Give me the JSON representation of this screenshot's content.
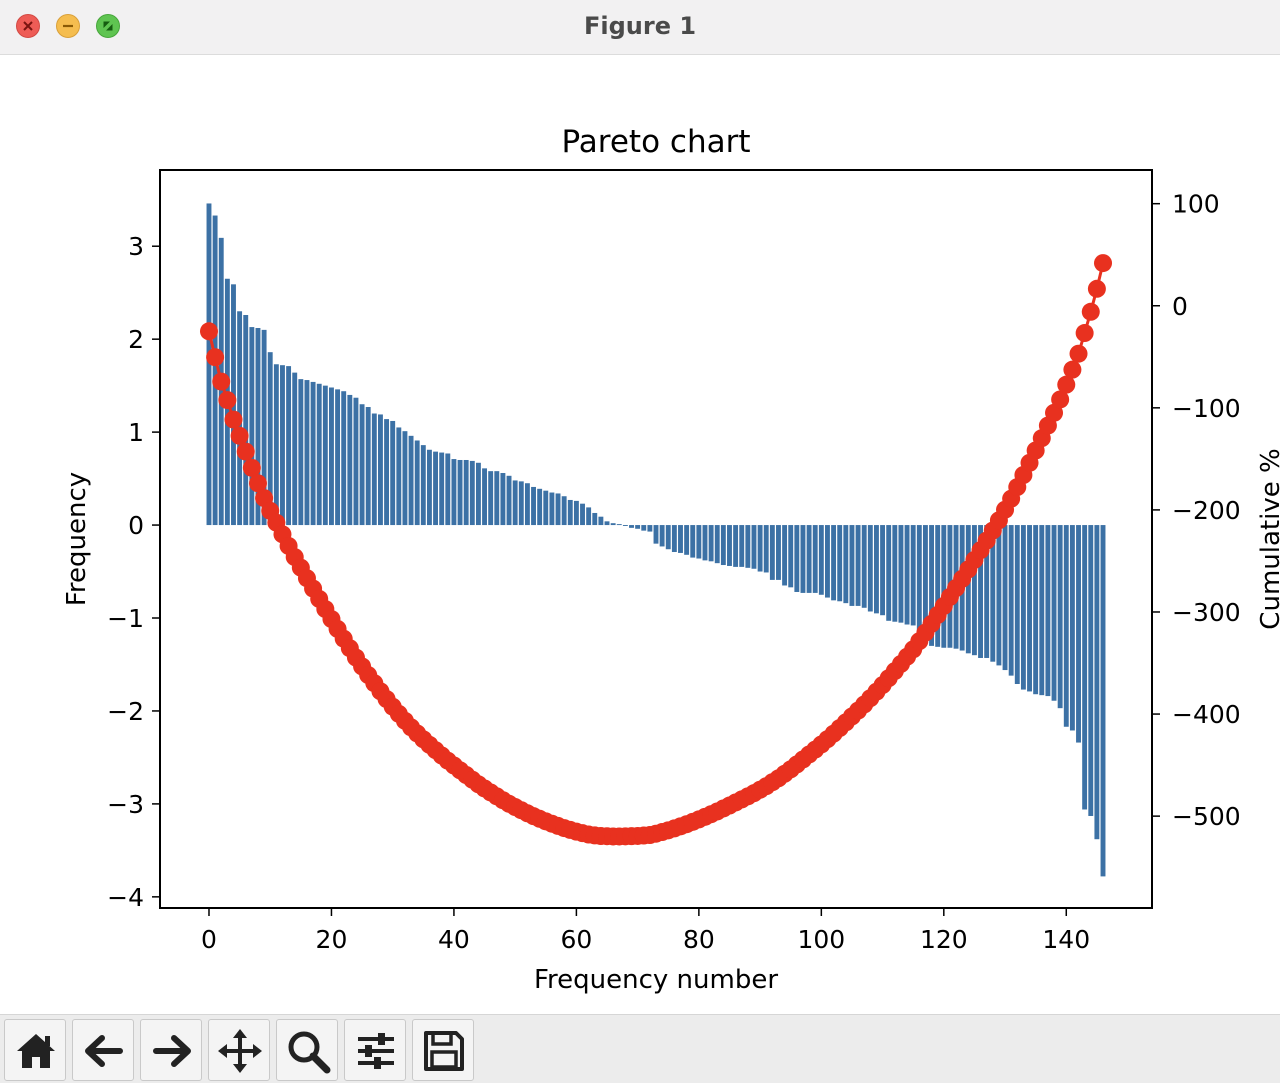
{
  "window": {
    "title": "Figure 1"
  },
  "toolbar": {
    "buttons": [
      {
        "icon": "home-icon"
      },
      {
        "icon": "back-arrow-icon"
      },
      {
        "icon": "forward-arrow-icon"
      },
      {
        "icon": "pan-icon"
      },
      {
        "icon": "zoom-icon"
      },
      {
        "icon": "configure-subplots-icon"
      },
      {
        "icon": "save-icon"
      }
    ]
  },
  "colors": {
    "bars": "#3c71a5",
    "line": "#e8311f"
  },
  "chart_data": {
    "type": "bar",
    "title": "Pareto chart",
    "xlabel": "Frequency number",
    "ylabel": "Frequency",
    "y2label": "Cumulative %",
    "xlim": [
      -8,
      154
    ],
    "ylim": [
      -4.12,
      3.82
    ],
    "y2lim": [
      -590,
      133
    ],
    "xticks": [
      0,
      20,
      40,
      60,
      80,
      100,
      120,
      140
    ],
    "yticks": [
      3,
      2,
      1,
      0,
      -1,
      -2,
      -3,
      -4
    ],
    "y2ticks": [
      100,
      0,
      -100,
      -200,
      -300,
      -400,
      -500
    ],
    "x": [
      0,
      1,
      2,
      3,
      4,
      5,
      6,
      7,
      8,
      9,
      10,
      11,
      12,
      13,
      14,
      15,
      16,
      17,
      18,
      19,
      20,
      21,
      22,
      23,
      24,
      25,
      26,
      27,
      28,
      29,
      30,
      31,
      32,
      33,
      34,
      35,
      36,
      37,
      38,
      39,
      40,
      41,
      42,
      43,
      44,
      45,
      46,
      47,
      48,
      49,
      50,
      51,
      52,
      53,
      54,
      55,
      56,
      57,
      58,
      59,
      60,
      61,
      62,
      63,
      64,
      65,
      66,
      67,
      68,
      69,
      70,
      71,
      72,
      73,
      74,
      75,
      76,
      77,
      78,
      79,
      80,
      81,
      82,
      83,
      84,
      85,
      86,
      87,
      88,
      89,
      90,
      91,
      92,
      93,
      94,
      95,
      96,
      97,
      98,
      99,
      100,
      101,
      102,
      103,
      104,
      105,
      106,
      107,
      108,
      109,
      110,
      111,
      112,
      113,
      114,
      115,
      116,
      117,
      118,
      119,
      120,
      121,
      122,
      123,
      124,
      125,
      126,
      127,
      128,
      129,
      130,
      131,
      132,
      133,
      134,
      135,
      136,
      137,
      138,
      139,
      140,
      141,
      142,
      143,
      144,
      145,
      146
    ],
    "series": [
      {
        "values": [
          3.46,
          3.33,
          3.09,
          2.65,
          2.59,
          2.3,
          2.26,
          2.13,
          2.12,
          2.1,
          1.86,
          1.73,
          1.72,
          1.71,
          1.64,
          1.57,
          1.56,
          1.54,
          1.52,
          1.5,
          1.48,
          1.46,
          1.44,
          1.4,
          1.37,
          1.3,
          1.27,
          1.2,
          1.19,
          1.14,
          1.12,
          1.05,
          1.01,
          0.96,
          0.91,
          0.86,
          0.81,
          0.79,
          0.78,
          0.77,
          0.71,
          0.7,
          0.7,
          0.69,
          0.67,
          0.61,
          0.58,
          0.58,
          0.56,
          0.53,
          0.48,
          0.47,
          0.45,
          0.41,
          0.39,
          0.37,
          0.35,
          0.34,
          0.31,
          0.27,
          0.26,
          0.23,
          0.19,
          0.13,
          0.09,
          0.04,
          0.02,
          0.01,
          -0.01,
          -0.03,
          -0.04,
          -0.06,
          -0.07,
          -0.2,
          -0.23,
          -0.26,
          -0.29,
          -0.3,
          -0.32,
          -0.35,
          -0.36,
          -0.38,
          -0.39,
          -0.41,
          -0.43,
          -0.44,
          -0.45,
          -0.45,
          -0.46,
          -0.47,
          -0.5,
          -0.51,
          -0.59,
          -0.59,
          -0.65,
          -0.67,
          -0.72,
          -0.73,
          -0.73,
          -0.73,
          -0.75,
          -0.78,
          -0.81,
          -0.82,
          -0.84,
          -0.87,
          -0.87,
          -0.89,
          -0.93,
          -0.95,
          -0.97,
          -1.03,
          -1.04,
          -1.05,
          -1.07,
          -1.08,
          -1.2,
          -1.26,
          -1.3,
          -1.31,
          -1.32,
          -1.32,
          -1.33,
          -1.35,
          -1.38,
          -1.4,
          -1.43,
          -1.43,
          -1.47,
          -1.51,
          -1.56,
          -1.62,
          -1.71,
          -1.77,
          -1.79,
          -1.82,
          -1.83,
          -1.84,
          -1.89,
          -1.97,
          -2.17,
          -2.21,
          -2.34,
          -3.06,
          -3.13,
          -3.38,
          -3.78
        ]
      },
      {
        "values": [
          -25,
          -50.4,
          -74.3,
          -92.4,
          -111.5,
          -127.4,
          -142.9,
          -158.8,
          -173.9,
          -188.4,
          -200.9,
          -212.5,
          -223.9,
          -235.3,
          -246.2,
          -256.6,
          -266.9,
          -277.1,
          -287.2,
          -297.1,
          -306.9,
          -316.6,
          -326.2,
          -335.5,
          -344.6,
          -353.3,
          -361.8,
          -369.8,
          -377.7,
          -385.3,
          -392.8,
          -399.8,
          -406.6,
          -413,
          -419,
          -424.7,
          -430.1,
          -435.4,
          -440.6,
          -445.7,
          -450.4,
          -455.1,
          -459.7,
          -464.3,
          -468.8,
          -472.9,
          -476.8,
          -480.6,
          -484.4,
          -487.9,
          -491.1,
          -494.2,
          -497.2,
          -500,
          -502.6,
          -505.1,
          -507.4,
          -509.6,
          -511.7,
          -513.5,
          -515.2,
          -516.7,
          -518,
          -518.9,
          -519.5,
          -519.7,
          -519.9,
          -519.9,
          -519.8,
          -519.6,
          -519.4,
          -519,
          -518.5,
          -517.2,
          -515.6,
          -513.9,
          -512,
          -510,
          -507.9,
          -505.6,
          -503.2,
          -500.7,
          -498.1,
          -495.4,
          -492.5,
          -489.6,
          -486.6,
          -483.6,
          -480.6,
          -477.5,
          -474.1,
          -470.7,
          -466.8,
          -462.9,
          -458.5,
          -454.1,
          -449.3,
          -444.5,
          -439.6,
          -434.8,
          -429.8,
          -424.6,
          -419.2,
          -413.7,
          -408.1,
          -402.3,
          -396.6,
          -390.6,
          -384.4,
          -378.1,
          -371.6,
          -364.8,
          -357.9,
          -350.9,
          -343.8,
          -336.6,
          -328.6,
          -320.2,
          -311.6,
          -302.9,
          -294.1,
          -285.3,
          -276.5,
          -267.5,
          -258.3,
          -249,
          -239.5,
          -230,
          -220.2,
          -210.2,
          -199.8,
          -189,
          -177.6,
          -165.8,
          -153.9,
          -141.8,
          -129.7,
          -117.4,
          -104.9,
          -91.8,
          -77.3,
          -62.6,
          -47,
          -26.7,
          -5.9,
          16.6,
          41.8
        ]
      }
    ],
    "legend": "none",
    "grid": false
  }
}
